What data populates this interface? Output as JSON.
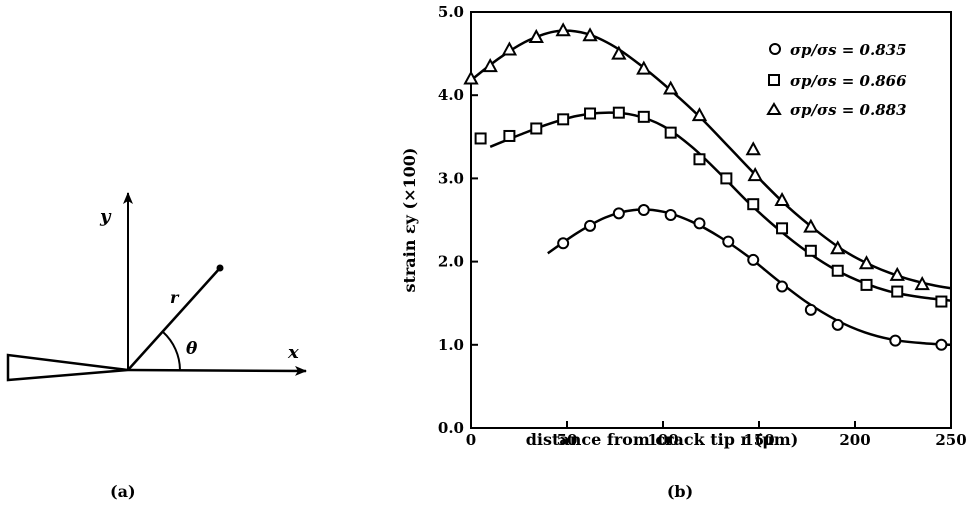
{
  "diagram": {
    "axis_y_label": "y",
    "axis_x_label": "x",
    "radius_label": "r",
    "angle_label": "θ",
    "panel_label": "(a)"
  },
  "panel_b_label": "(b)",
  "chart_data": {
    "type": "scatter",
    "xlabel": "distance from crack tip r  (μm)",
    "ylabel": "strain εy (×100)",
    "xlim": [
      0,
      250
    ],
    "ylim": [
      0,
      5
    ],
    "x_ticks": [
      "0",
      "50",
      "100",
      "150",
      "200",
      "250"
    ],
    "y_ticks": [
      "0.0",
      "1.0",
      "2.0",
      "3.0",
      "4.0",
      "5.0"
    ],
    "legend_position": "top-right",
    "grid": false,
    "series": [
      {
        "name": "σp/σs = 0.835",
        "marker": "circle",
        "points": [
          [
            48,
            2.22
          ],
          [
            62,
            2.43
          ],
          [
            77,
            2.58
          ],
          [
            90,
            2.62
          ],
          [
            104,
            2.56
          ],
          [
            119,
            2.46
          ],
          [
            134,
            2.24
          ],
          [
            147,
            2.02
          ],
          [
            162,
            1.7
          ],
          [
            177,
            1.42
          ],
          [
            191,
            1.24
          ],
          [
            221,
            1.05
          ],
          [
            245,
            1.0
          ]
        ],
        "curve": [
          [
            40,
            2.1
          ],
          [
            55,
            2.34
          ],
          [
            70,
            2.53
          ],
          [
            85,
            2.62
          ],
          [
            100,
            2.6
          ],
          [
            115,
            2.48
          ],
          [
            130,
            2.29
          ],
          [
            145,
            2.05
          ],
          [
            160,
            1.77
          ],
          [
            175,
            1.51
          ],
          [
            190,
            1.3
          ],
          [
            205,
            1.15
          ],
          [
            220,
            1.06
          ],
          [
            235,
            1.02
          ],
          [
            250,
            1.0
          ]
        ]
      },
      {
        "name": "σp/σs = 0.866",
        "marker": "square",
        "points": [
          [
            5,
            3.48
          ],
          [
            20,
            3.51
          ],
          [
            34,
            3.6
          ],
          [
            48,
            3.71
          ],
          [
            62,
            3.78
          ],
          [
            77,
            3.79
          ],
          [
            90,
            3.74
          ],
          [
            104,
            3.55
          ],
          [
            119,
            3.23
          ],
          [
            133,
            3.0
          ],
          [
            147,
            2.69
          ],
          [
            162,
            2.4
          ],
          [
            177,
            2.13
          ],
          [
            191,
            1.89
          ],
          [
            206,
            1.72
          ],
          [
            222,
            1.64
          ],
          [
            245,
            1.52
          ]
        ],
        "curve": [
          [
            10,
            3.38
          ],
          [
            25,
            3.52
          ],
          [
            40,
            3.65
          ],
          [
            55,
            3.75
          ],
          [
            70,
            3.79
          ],
          [
            85,
            3.76
          ],
          [
            100,
            3.63
          ],
          [
            115,
            3.38
          ],
          [
            130,
            3.05
          ],
          [
            145,
            2.7
          ],
          [
            160,
            2.39
          ],
          [
            175,
            2.12
          ],
          [
            190,
            1.9
          ],
          [
            205,
            1.74
          ],
          [
            220,
            1.63
          ],
          [
            235,
            1.57
          ],
          [
            250,
            1.53
          ]
        ]
      },
      {
        "name": "σp/σs = 0.883",
        "marker": "triangle",
        "points": [
          [
            0,
            4.2
          ],
          [
            10,
            4.35
          ],
          [
            20,
            4.55
          ],
          [
            34,
            4.7
          ],
          [
            48,
            4.78
          ],
          [
            62,
            4.72
          ],
          [
            77,
            4.5
          ],
          [
            90,
            4.32
          ],
          [
            104,
            4.08
          ],
          [
            119,
            3.76
          ],
          [
            147,
            3.35
          ],
          [
            148,
            3.04
          ],
          [
            162,
            2.74
          ],
          [
            177,
            2.42
          ],
          [
            191,
            2.16
          ],
          [
            206,
            1.98
          ],
          [
            222,
            1.84
          ],
          [
            235,
            1.73
          ]
        ],
        "curve": [
          [
            0,
            4.18
          ],
          [
            15,
            4.45
          ],
          [
            30,
            4.66
          ],
          [
            45,
            4.77
          ],
          [
            60,
            4.74
          ],
          [
            75,
            4.58
          ],
          [
            90,
            4.33
          ],
          [
            105,
            4.04
          ],
          [
            120,
            3.72
          ],
          [
            135,
            3.36
          ],
          [
            150,
            3.0
          ],
          [
            165,
            2.66
          ],
          [
            180,
            2.37
          ],
          [
            195,
            2.12
          ],
          [
            210,
            1.94
          ],
          [
            225,
            1.81
          ],
          [
            240,
            1.72
          ],
          [
            250,
            1.68
          ]
        ]
      }
    ]
  }
}
